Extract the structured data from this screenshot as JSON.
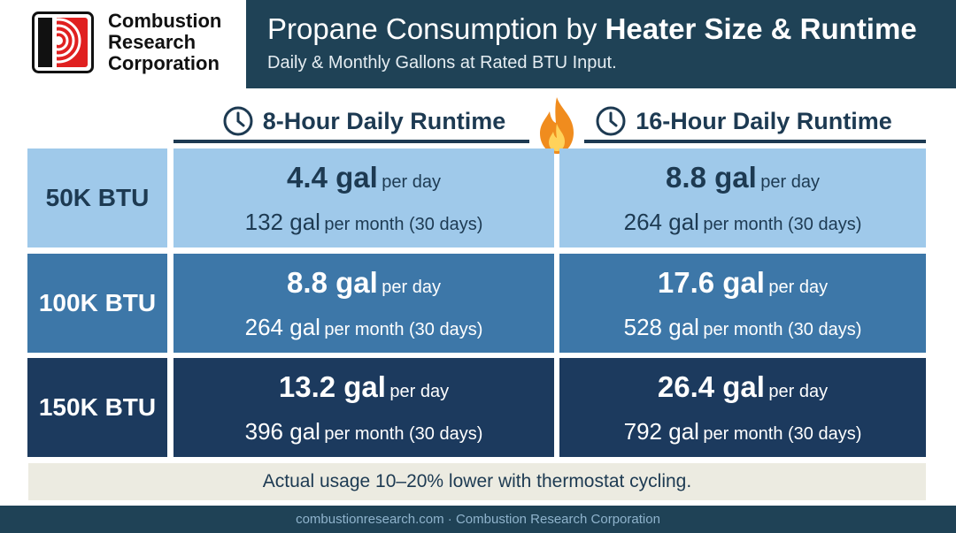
{
  "brand": {
    "name_lines": [
      "Combustion",
      "Research",
      "Corporation"
    ],
    "logo_color": "#e02020"
  },
  "header": {
    "title_part1": "Propane Consumption by",
    "title_part2": "Heater Size & Runtime",
    "subtitle": "Daily & Monthly Gallons at Rated BTU Input."
  },
  "chart_data": {
    "type": "table",
    "columns": [
      {
        "label": "8-Hour Daily Runtime",
        "icon": "clock-icon"
      },
      {
        "label": "16-Hour Daily Runtime",
        "icon": "clock-icon"
      }
    ],
    "divider_icon": "flame-icon",
    "rows": [
      {
        "label": "50K BTU",
        "color": "#9fc9ea",
        "cells": [
          {
            "daily": "4.4 gal",
            "daily_unit": "per day",
            "monthly": "132 gal",
            "monthly_unit": "per month (30 days)"
          },
          {
            "daily": "8.8 gal",
            "daily_unit": "per day",
            "monthly": "264 gal",
            "monthly_unit": "per month (30 days)"
          }
        ]
      },
      {
        "label": "100K BTU",
        "color": "#3d77a8",
        "cells": [
          {
            "daily": "8.8 gal",
            "daily_unit": "per day",
            "monthly": "264 gal",
            "monthly_unit": "per month (30 days)"
          },
          {
            "daily": "17.6 gal",
            "daily_unit": "per day",
            "monthly": "528 gal",
            "monthly_unit": "per month (30 days)"
          }
        ]
      },
      {
        "label": "150K BTU",
        "color": "#1c3a5e",
        "cells": [
          {
            "daily": "13.2 gal",
            "daily_unit": "per day",
            "monthly": "396 gal",
            "monthly_unit": "per month (30 days)"
          },
          {
            "daily": "26.4 gal",
            "daily_unit": "per day",
            "monthly": "792 gal",
            "monthly_unit": "per month (30 days)"
          }
        ]
      }
    ],
    "note": "Actual usage 10–20% lower with thermostat cycling."
  },
  "footer": {
    "text": "combustionresearch.com · Combustion Research Corporation"
  },
  "colors": {
    "header_band": "#1f4256",
    "heading_text": "#1d3a52",
    "note_background": "#ecebe1",
    "flame_orange": "#f08c1e"
  }
}
